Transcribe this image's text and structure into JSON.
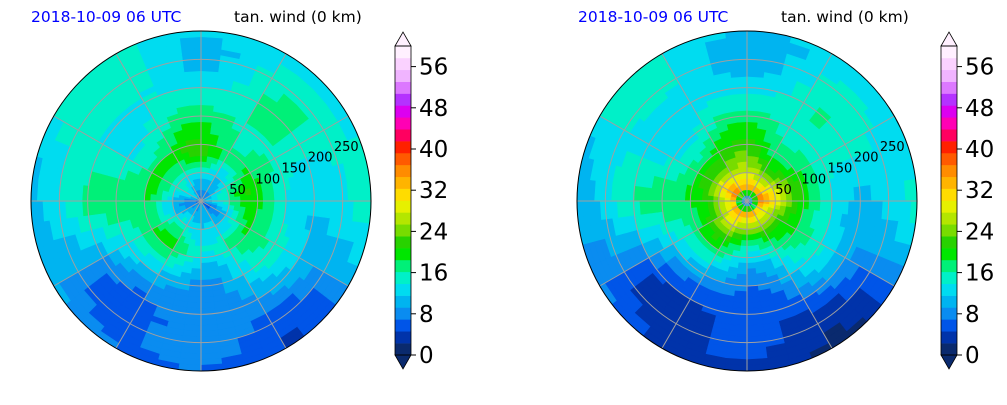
{
  "colors": {
    "colorbar_levels": [
      "#0a2a6e",
      "#0033aa",
      "#0055e8",
      "#0a8cf0",
      "#00b4f0",
      "#00dcf0",
      "#00f0c8",
      "#00f078",
      "#00e600",
      "#28d200",
      "#78dc00",
      "#b4e600",
      "#e6f000",
      "#ffdc00",
      "#ffb400",
      "#ff8c00",
      "#ff5a00",
      "#ff2000",
      "#ff0060",
      "#ff00b4",
      "#dc00f0",
      "#b432ff",
      "#dc78ff",
      "#f0b4ff",
      "#fad2ff",
      "#fff0ff"
    ],
    "range_ring": "#a0a0a0",
    "land_mask": "#ffffff"
  },
  "chart_data": [
    {
      "type": "polar-filled-contour",
      "title_left": "2018-10-09 06 UTC",
      "title_right": "tan. wind (0 km)",
      "radial_ticks": [
        "50",
        "100",
        "150",
        "200",
        "250"
      ],
      "radial_tick_values": [
        50,
        100,
        150,
        200,
        250
      ],
      "rmax": 300,
      "grid": true,
      "colorbar": {
        "ticks": [
          "0",
          "8",
          "16",
          "24",
          "32",
          "40",
          "48",
          "56"
        ],
        "tick_values": [
          0,
          8,
          16,
          24,
          32,
          40,
          48,
          56
        ],
        "vmin": 0,
        "vmax": 60,
        "extend": "both"
      },
      "field": {
        "center_min": 8,
        "peak": 20,
        "rmw": 90,
        "background": 13,
        "south_weak_sector": 4
      }
    },
    {
      "type": "polar-filled-contour",
      "title_left": "2018-10-09 06 UTC",
      "title_right": "tan. wind (0 km)",
      "radial_ticks": [
        "50",
        "100",
        "150",
        "200",
        "250"
      ],
      "radial_tick_values": [
        50,
        100,
        150,
        200,
        250
      ],
      "rmax": 300,
      "grid": true,
      "colorbar": {
        "ticks": [
          "0",
          "8",
          "16",
          "24",
          "32",
          "40",
          "48",
          "56"
        ],
        "tick_values": [
          0,
          8,
          16,
          24,
          32,
          40,
          48,
          56
        ],
        "vmin": 0,
        "vmax": 60,
        "extend": "both"
      },
      "field": {
        "center_min": 5,
        "peak": 34,
        "rmw": 25,
        "background": 12,
        "south_weak_sector": 5
      }
    }
  ]
}
